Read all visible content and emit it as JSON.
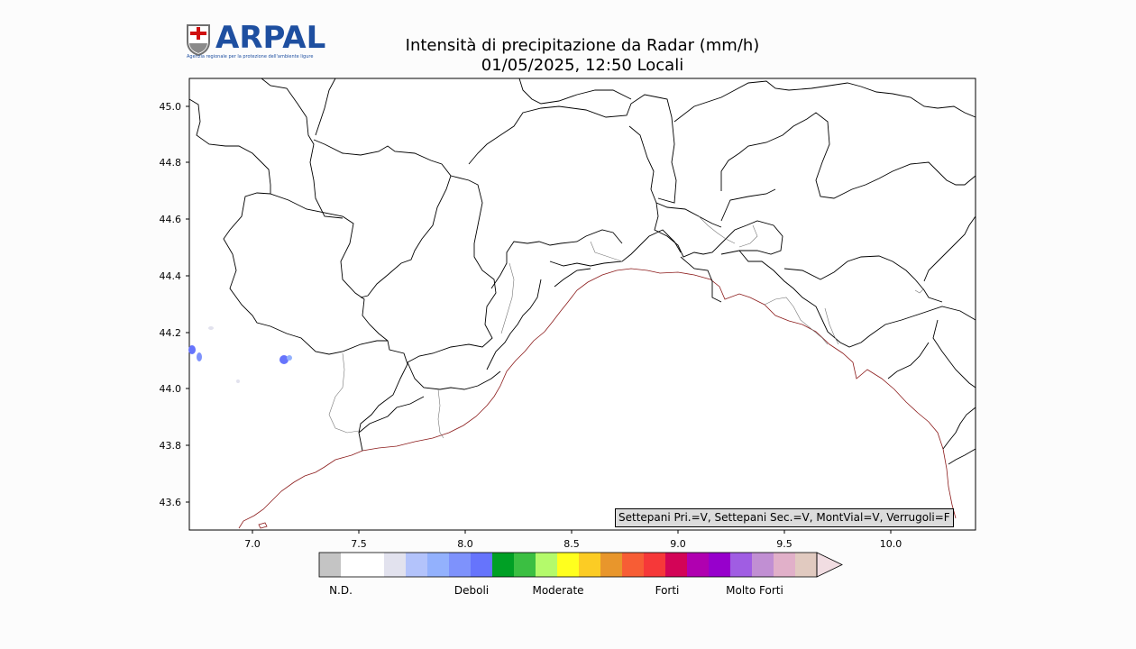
{
  "logo": {
    "wordmark": "ARPAL",
    "tagline": "Agenzia regionale per la protezione dell'ambiente ligure"
  },
  "title": {
    "line1": "Intensità di precipitazione da Radar (mm/h)",
    "line2": "01/05/2025, 12:50 Locali"
  },
  "map": {
    "lon_range": [
      6.7,
      10.4
    ],
    "lat_range": [
      43.5,
      45.1
    ],
    "x_ticks": [
      "7.0",
      "7.5",
      "8.0",
      "8.5",
      "9.0",
      "9.5",
      "10.0"
    ],
    "y_ticks": [
      "43.6",
      "43.8",
      "44.0",
      "44.2",
      "44.4",
      "44.6",
      "44.8",
      "45.0"
    ]
  },
  "info_box": "Settepani Pri.=V, Settepani Sec.=V, MontVial=V, Verrugoli=F",
  "colorbar": {
    "colors": [
      "#c4c4c4",
      "#ffffff",
      "#ffffff",
      "#e2e2ee",
      "#b3c3fb",
      "#93b1fd",
      "#7e92fc",
      "#6674fc",
      "#00a025",
      "#3bbf42",
      "#b4fa6b",
      "#ffff1e",
      "#fccc24",
      "#e8962c",
      "#f75d35",
      "#f63839",
      "#d30457",
      "#b000b0",
      "#9700cc",
      "#a05de3",
      "#c18fd3",
      "#e1b0c9",
      "#e1cac0"
    ],
    "extend_color": "#f1dde2",
    "labels": [
      "N.D.",
      "Deboli",
      "Moderate",
      "Forti",
      "Molto Forti"
    ]
  }
}
